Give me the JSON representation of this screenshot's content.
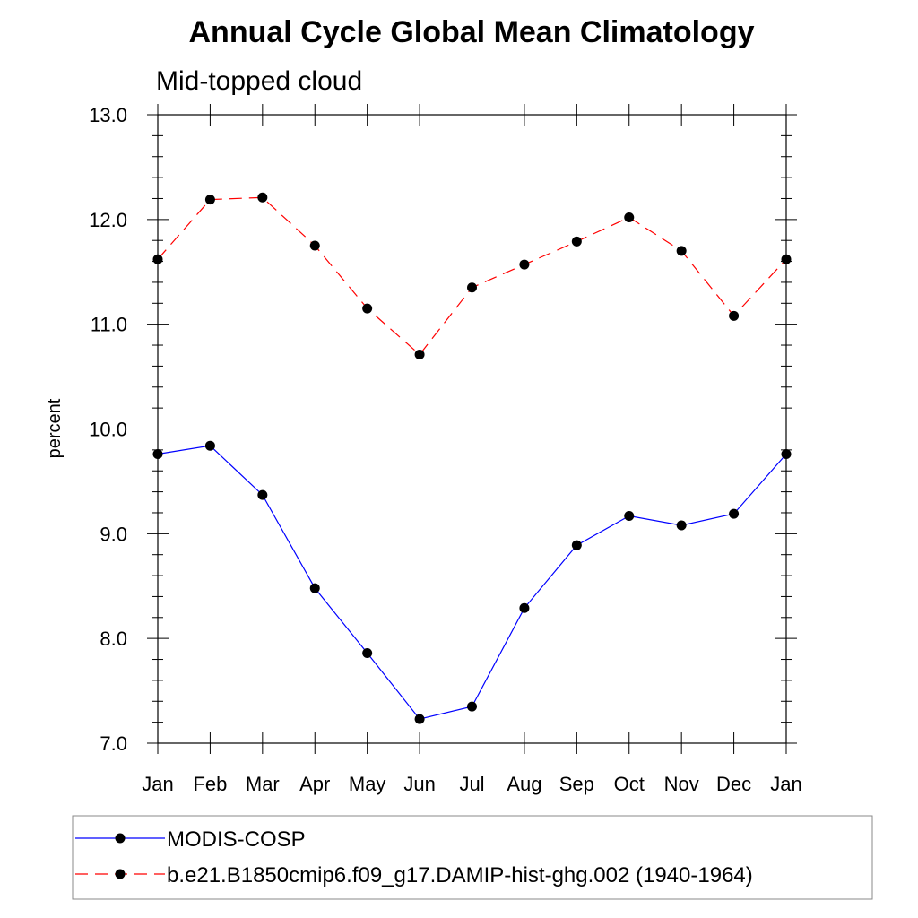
{
  "chart_data": {
    "type": "line",
    "title": "Annual Cycle Global Mean Climatology",
    "subtitle": "Mid-topped cloud",
    "xlabel": "",
    "ylabel": "percent",
    "categories": [
      "Jan",
      "Feb",
      "Mar",
      "Apr",
      "May",
      "Jun",
      "Jul",
      "Aug",
      "Sep",
      "Oct",
      "Nov",
      "Dec",
      "Jan"
    ],
    "ylim": [
      7.0,
      13.0
    ],
    "yticks": [
      "7.0",
      "8.0",
      "9.0",
      "10.0",
      "11.0",
      "12.0",
      "13.0"
    ],
    "grid": false,
    "legend_position": "bottom",
    "series": [
      {
        "name": "MODIS-COSP",
        "color": "#0000ff",
        "line_style": "solid",
        "marker": "filled-circle",
        "values": [
          9.76,
          9.84,
          9.37,
          8.48,
          7.86,
          7.23,
          7.35,
          8.29,
          8.89,
          9.17,
          9.08,
          9.19,
          9.76
        ]
      },
      {
        "name": "b.e21.B1850cmip6.f09_g17.DAMIP-hist-ghg.002 (1940-1964)",
        "color": "#ff0000",
        "line_style": "dashed",
        "marker": "filled-circle",
        "values": [
          11.62,
          12.19,
          12.21,
          11.75,
          11.15,
          10.71,
          11.35,
          11.57,
          11.79,
          12.02,
          11.7,
          11.08,
          11.62
        ]
      }
    ]
  }
}
